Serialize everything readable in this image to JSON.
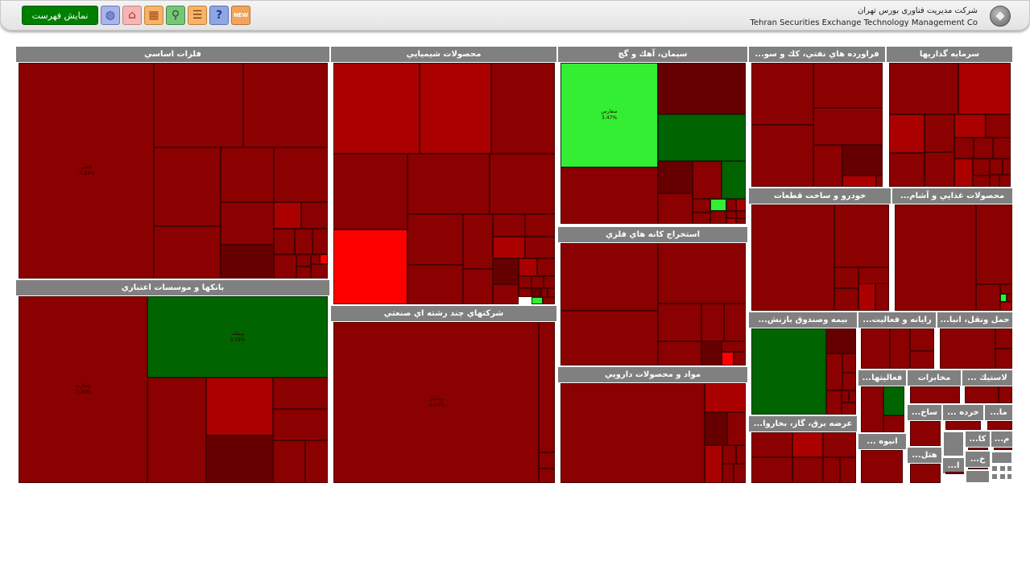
{
  "header": {
    "show_list_button": "نمایش فهرست",
    "company_fa": "شرکت مدیریت فناوری بورس تهران",
    "company_en": "Tehran Securities Exchange Technology Management Co",
    "icons": [
      "globe-icon",
      "home-icon",
      "table-icon",
      "search-icon",
      "message-icon",
      "help-icon",
      "new-icon"
    ]
  },
  "colors": {
    "dark_red": "#8b0000",
    "red": "#aa0000",
    "bright_red": "#ff0000",
    "maroon": "#660000",
    "dark_green": "#006400",
    "bright_green": "#33ee33",
    "header_gray": "#808080",
    "button_green": "#008000"
  },
  "sectors": [
    {
      "id": "basic-metals",
      "name": "فلزات اساسي"
    },
    {
      "id": "banks",
      "name": "بانكها و موسسات اعتباري"
    },
    {
      "id": "chemicals",
      "name": "محصولات شيميايي"
    },
    {
      "id": "diversified",
      "name": "شركتهاي چند رشته اي صنعتي"
    },
    {
      "id": "cement",
      "name": "سيمان، آهك و گچ"
    },
    {
      "id": "metal-mining",
      "name": "استخراج كانه هاي فلزي"
    },
    {
      "id": "pharma",
      "name": "مواد و محصولات دارويي"
    },
    {
      "id": "petroleum",
      "name": "...فراورده هاي نفتي، كك و سو"
    },
    {
      "id": "investment",
      "name": "سرمايه گذاريها"
    },
    {
      "id": "automotive",
      "name": "خودرو و ساخت قطعات"
    },
    {
      "id": "food",
      "name": "...محصولات غذايي و آشام"
    },
    {
      "id": "insurance",
      "name": "...بيمه وصندوق بازنش"
    },
    {
      "id": "computer",
      "name": "...رايانه و فعاليت"
    },
    {
      "id": "transport",
      "name": "...حمل ونقل، انبا"
    },
    {
      "id": "utilities",
      "name": "...عرضه برق، گاز، بخاروا"
    },
    {
      "id": "other-financial",
      "name": "...فعاليتها"
    },
    {
      "id": "telecom",
      "name": "مخابرات"
    },
    {
      "id": "rubber",
      "name": "... لاستيك"
    },
    {
      "id": "construction",
      "name": "...ساخ"
    },
    {
      "id": "retail",
      "name": "... خرده"
    },
    {
      "id": "ma",
      "name": "...ما"
    },
    {
      "id": "mass-prod",
      "name": "... انبوه"
    },
    {
      "id": "hotel",
      "name": "...هتل"
    },
    {
      "id": "ka",
      "name": "...كا"
    },
    {
      "id": "m",
      "name": "...م"
    },
    {
      "id": "kh",
      "name": "...خ"
    },
    {
      "id": "misc-1",
      "name": "...ا"
    }
  ],
  "labels": {
    "basic_metals_big": "فملي",
    "basic_metals_pct": "-3.84%",
    "banks_green": "وبملت",
    "banks_green_pct": "3.19%",
    "banks_big": "وتجارت",
    "banks_big_pct": "-1.40%",
    "diversified_big": "وبانصار",
    "diversified_pct": "-2.04%",
    "cement_green": "سفارس",
    "cement_green_pct": "3.47%"
  }
}
